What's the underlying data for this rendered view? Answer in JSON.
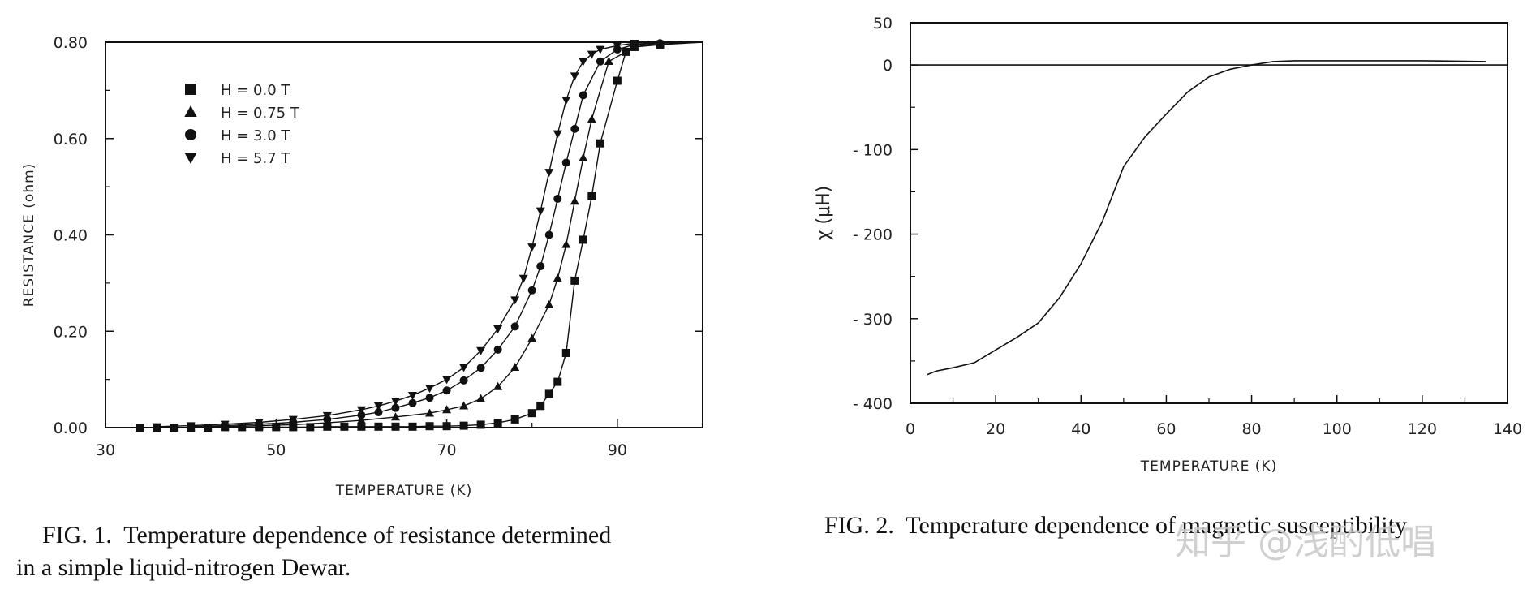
{
  "chart_data": [
    {
      "type": "scatter",
      "title": "",
      "xlabel": "TEMPERATURE (K)",
      "ylabel": "RESISTANCE (ohm)",
      "xlim": [
        30,
        100
      ],
      "ylim": [
        0.0,
        0.8
      ],
      "x_ticks": [
        30,
        50,
        70,
        90
      ],
      "x_tick_labels": [
        "30",
        "50",
        "70",
        "90"
      ],
      "y_ticks": [
        0.0,
        0.2,
        0.4,
        0.6,
        0.8
      ],
      "y_tick_labels": [
        "0.00",
        "0.20",
        "0.40",
        "0.60",
        "0.80"
      ],
      "grid": false,
      "legend_position": "top-left",
      "series": [
        {
          "name": "H = 0.0 T",
          "marker": "square",
          "x": [
            34,
            36,
            38,
            40,
            42,
            44,
            46,
            48,
            50,
            52,
            54,
            56,
            58,
            60,
            62,
            64,
            66,
            68,
            70,
            72,
            74,
            76,
            78,
            80,
            81,
            82,
            83,
            84,
            85,
            86,
            87,
            88,
            90,
            91,
            92,
            95
          ],
          "y": [
            0.0,
            0.0,
            0.0,
            0.0,
            0.0,
            0.001,
            0.001,
            0.001,
            0.001,
            0.001,
            0.001,
            0.002,
            0.002,
            0.002,
            0.002,
            0.002,
            0.002,
            0.003,
            0.003,
            0.004,
            0.006,
            0.01,
            0.017,
            0.03,
            0.045,
            0.07,
            0.095,
            0.155,
            0.305,
            0.39,
            0.48,
            0.59,
            0.72,
            0.78,
            0.79,
            0.795
          ]
        },
        {
          "name": "H = 0.75 T",
          "marker": "triangle-up",
          "x": [
            40,
            44,
            48,
            52,
            56,
            60,
            64,
            68,
            70,
            72,
            74,
            76,
            78,
            80,
            82,
            83,
            84,
            85,
            86,
            87,
            89,
            92,
            95
          ],
          "y": [
            0.0,
            0.002,
            0.004,
            0.006,
            0.01,
            0.015,
            0.022,
            0.03,
            0.037,
            0.045,
            0.06,
            0.085,
            0.125,
            0.185,
            0.255,
            0.31,
            0.38,
            0.47,
            0.56,
            0.64,
            0.76,
            0.79,
            0.798
          ]
        },
        {
          "name": "H = 3.0 T",
          "marker": "circle",
          "x": [
            40,
            44,
            48,
            52,
            56,
            60,
            62,
            64,
            66,
            68,
            70,
            72,
            74,
            76,
            78,
            80,
            81,
            82,
            83,
            84,
            85,
            86,
            88,
            90,
            92,
            95
          ],
          "y": [
            0.002,
            0.004,
            0.007,
            0.011,
            0.017,
            0.026,
            0.032,
            0.041,
            0.051,
            0.062,
            0.077,
            0.098,
            0.124,
            0.162,
            0.21,
            0.285,
            0.335,
            0.4,
            0.475,
            0.55,
            0.62,
            0.69,
            0.76,
            0.785,
            0.795,
            0.798
          ]
        },
        {
          "name": "H = 5.7 T",
          "marker": "triangle-down",
          "x": [
            36,
            40,
            44,
            48,
            52,
            56,
            60,
            62,
            64,
            66,
            68,
            70,
            72,
            74,
            76,
            78,
            79,
            80,
            81,
            82,
            83,
            84,
            85,
            86,
            87,
            88,
            90,
            92
          ],
          "y": [
            0.002,
            0.004,
            0.007,
            0.011,
            0.017,
            0.025,
            0.037,
            0.045,
            0.055,
            0.067,
            0.082,
            0.1,
            0.125,
            0.16,
            0.205,
            0.265,
            0.31,
            0.375,
            0.45,
            0.53,
            0.61,
            0.68,
            0.73,
            0.76,
            0.775,
            0.785,
            0.793,
            0.798
          ]
        }
      ]
    },
    {
      "type": "line",
      "title": "",
      "xlabel": "TEMPERATURE (K)",
      "ylabel": "χ (μH)",
      "xlim": [
        0,
        140
      ],
      "ylim": [
        -400,
        50
      ],
      "x_ticks": [
        0,
        20,
        40,
        60,
        80,
        100,
        120,
        140
      ],
      "x_tick_labels": [
        "0",
        "20",
        "40",
        "60",
        "80",
        "100",
        "120",
        "140"
      ],
      "y_ticks": [
        50,
        0,
        -100,
        -200,
        -300,
        -400
      ],
      "y_tick_labels": [
        "50",
        "0",
        "- 100",
        "- 200",
        "- 300",
        "- 400"
      ],
      "grid": false,
      "reference_line_y": 0,
      "series": [
        {
          "x": [
            4,
            6,
            10,
            15,
            20,
            25,
            30,
            35,
            40,
            45,
            50,
            55,
            60,
            65,
            70,
            75,
            80,
            85,
            90,
            100,
            110,
            120,
            135
          ],
          "y": [
            -366,
            -362,
            -358,
            -352,
            -337,
            -322,
            -305,
            -275,
            -235,
            -185,
            -120,
            -85,
            -58,
            -32,
            -14,
            -5,
            0,
            4,
            5,
            5,
            5,
            5,
            4
          ]
        }
      ]
    }
  ],
  "captions": {
    "fig1_line1": "FIG. 1.  Temperature dependence of resistance determined",
    "fig1_line2": "in a simple liquid-nitrogen Dewar.",
    "fig2": "FIG. 2.  Temperature dependence of magnetic susceptibility"
  },
  "watermark": "知乎 @浅酌低唱"
}
